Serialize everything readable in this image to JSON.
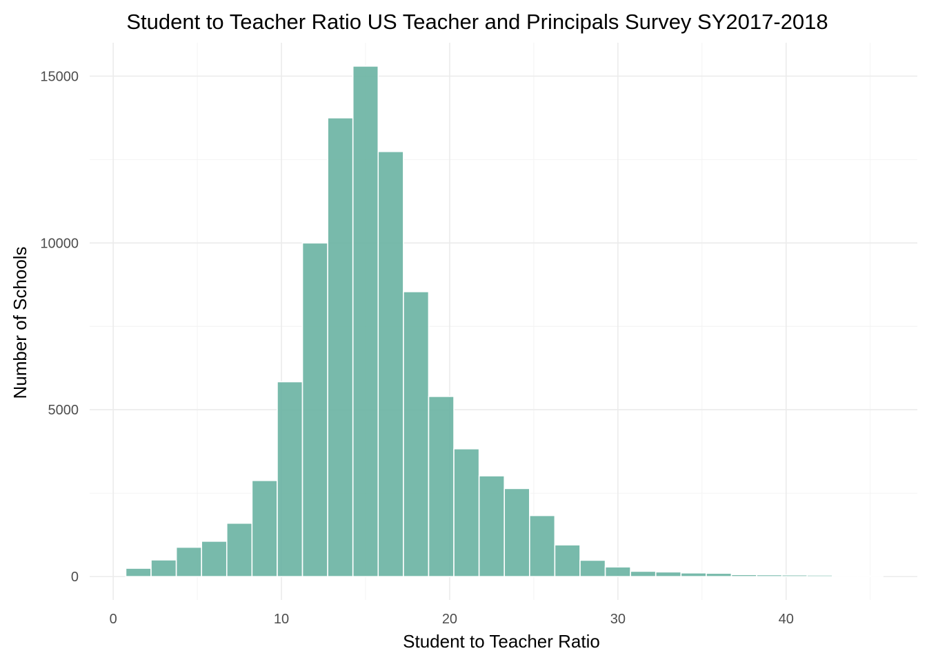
{
  "chart_data": {
    "type": "bar",
    "title": "Student to Teacher Ratio US Teacher and Principals Survey SY2017-2018",
    "xlabel": "Student to Teacher Ratio",
    "ylabel": "Number of Schools",
    "xlim": [
      -1.4,
      47.8
    ],
    "ylim": [
      -700,
      16000
    ],
    "x_ticks": [
      0,
      10,
      20,
      30,
      40
    ],
    "y_ticks": [
      0,
      5000,
      10000,
      15000
    ],
    "grid": true,
    "bin_width": 1.5,
    "bin_centers": [
      1.5,
      3.0,
      4.5,
      6.0,
      7.5,
      9.0,
      10.5,
      12.0,
      13.5,
      15.0,
      16.5,
      18.0,
      19.5,
      21.0,
      22.5,
      24.0,
      25.5,
      27.0,
      28.5,
      30.0,
      31.5,
      33.0,
      34.5,
      36.0,
      37.5,
      39.0,
      40.5,
      42.0,
      43.5,
      45.0
    ],
    "values": [
      250,
      500,
      880,
      1060,
      1600,
      2880,
      5840,
      10000,
      13750,
      15300,
      12740,
      8540,
      5400,
      3830,
      3020,
      2640,
      1830,
      950,
      490,
      290,
      160,
      140,
      110,
      100,
      60,
      55,
      50,
      45,
      30,
      20
    ],
    "colors": {
      "bar_fill": "#69b3a2",
      "bar_opacity": 0.9,
      "bar_stroke": "#ffffff"
    }
  }
}
